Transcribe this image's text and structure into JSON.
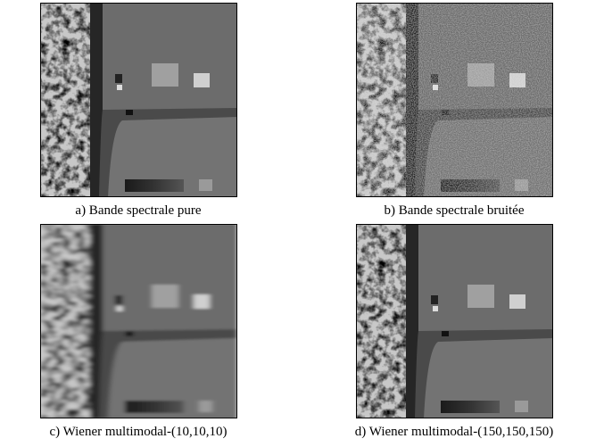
{
  "panels": [
    {
      "caption": "a) Bande spectrale pure"
    },
    {
      "caption": "b) Bande spectrale bruitée"
    },
    {
      "caption": "c) Wiener multimodal-(10,10,10)"
    },
    {
      "caption": "d) Wiener multimodal-(150,150,150)"
    }
  ]
}
